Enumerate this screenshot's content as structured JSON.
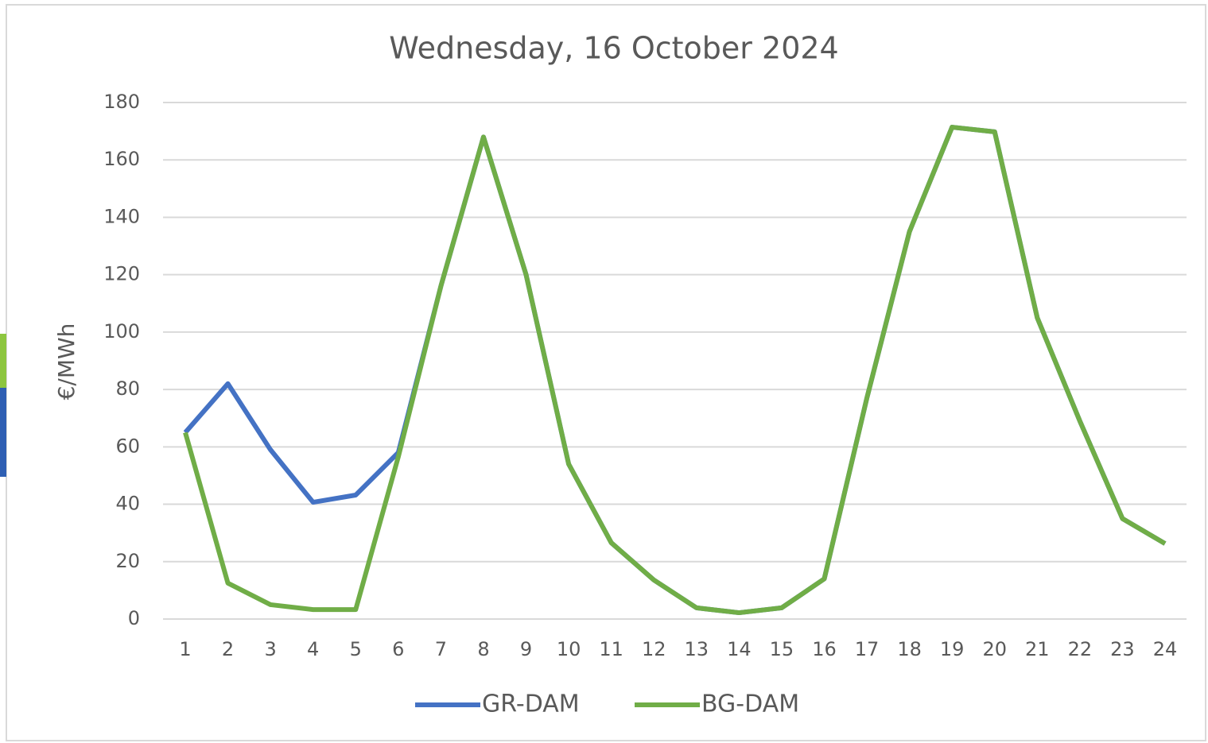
{
  "chart_data": {
    "type": "line",
    "title": "Wednesday, 16 October 2024",
    "y_label": "€/MWh",
    "categories": [
      "1",
      "2",
      "3",
      "4",
      "5",
      "6",
      "7",
      "8",
      "9",
      "10",
      "11",
      "12",
      "13",
      "14",
      "15",
      "16",
      "17",
      "18",
      "19",
      "20",
      "21",
      "22",
      "23",
      "24"
    ],
    "series": [
      {
        "name": "GR-DAM",
        "color": "#4472c4",
        "values": [
          65,
          82,
          59,
          40.7,
          43.2,
          58,
          116,
          168,
          120,
          54,
          26.6,
          13.6,
          3.9,
          2.2,
          3.9,
          14,
          77,
          135,
          171.4,
          169.8,
          105,
          69,
          35,
          26.3
        ]
      },
      {
        "name": "BG-DAM",
        "color": "#70ad47",
        "values": [
          65,
          12.5,
          5,
          3.3,
          3.3,
          56.5,
          116,
          168,
          120,
          54,
          26.6,
          13.6,
          3.9,
          2.2,
          3.9,
          14,
          77,
          135,
          171.4,
          169.8,
          105,
          69,
          35,
          26.3
        ]
      }
    ],
    "ylim": [
      0,
      180
    ],
    "yticks": [
      0,
      20,
      40,
      60,
      80,
      100,
      120,
      140,
      160,
      180
    ],
    "grid": true,
    "legend": "bottom"
  }
}
